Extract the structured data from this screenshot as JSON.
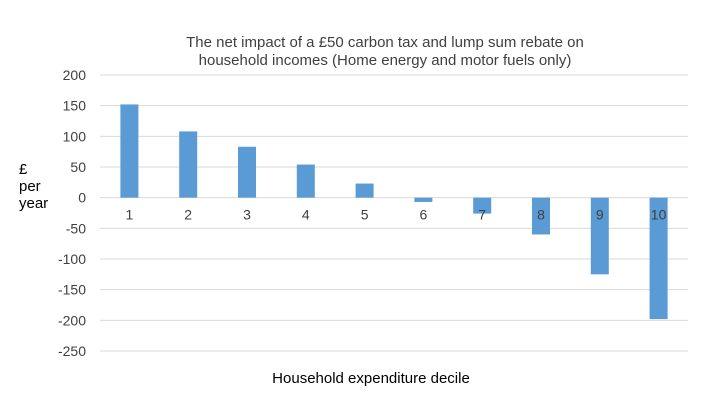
{
  "chart_data": {
    "type": "bar",
    "title_lines": [
      "The net impact of a £50 carbon tax and lump sum rebate on",
      "household incomes (Home energy and motor fuels only)"
    ],
    "xlabel": "Household expenditure decile",
    "ylabel_lines": [
      "£",
      "per",
      "year"
    ],
    "categories": [
      "1",
      "2",
      "3",
      "4",
      "5",
      "6",
      "7",
      "8",
      "9",
      "10"
    ],
    "values": [
      152,
      108,
      83,
      54,
      23,
      -7,
      -26,
      -60,
      -125,
      -198
    ],
    "ylim": [
      -250,
      200
    ],
    "yticks": [
      200,
      150,
      100,
      50,
      0,
      -50,
      -100,
      -150,
      -200,
      -250
    ],
    "bar_color": "#5b9bd5",
    "grid_color": "#d9d9d9",
    "grid": true,
    "legend": "none"
  }
}
